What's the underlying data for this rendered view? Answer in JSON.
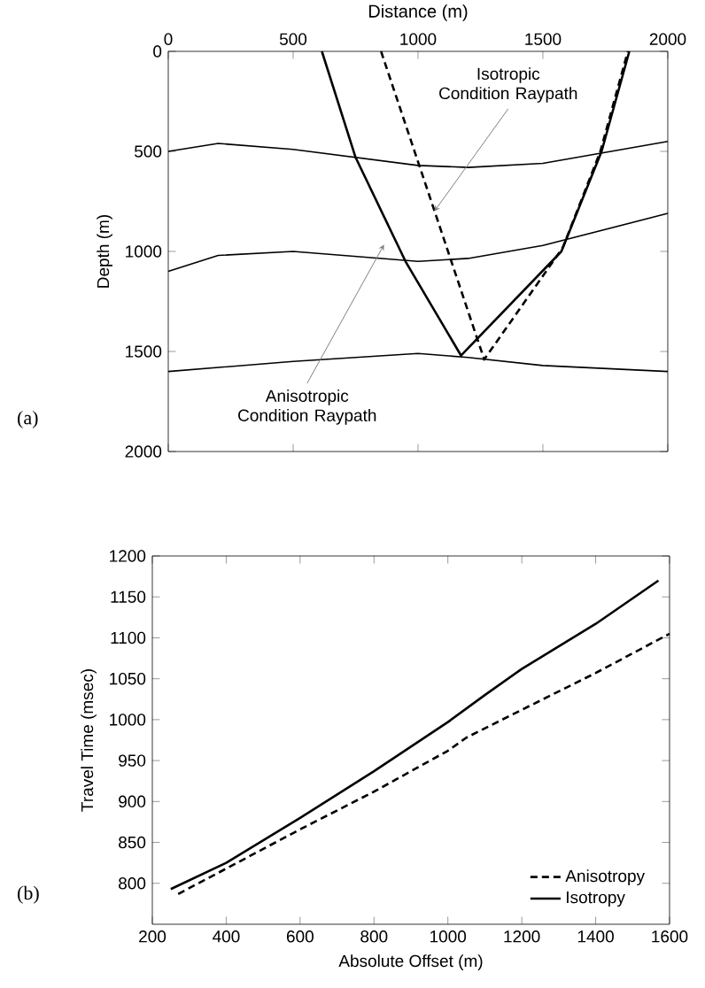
{
  "chart_data": [
    {
      "type": "line",
      "xlabel": "Distance (m)",
      "ylabel": "Depth (m)",
      "xlim": [
        0,
        2000
      ],
      "ylim": [
        2000,
        0
      ],
      "xticks": [
        0,
        500,
        1000,
        1500,
        2000
      ],
      "yticks": [
        0,
        500,
        1000,
        1500,
        2000
      ],
      "series": [
        {
          "color": "#000000",
          "line_style": "solid",
          "x": [
            0,
            200,
            500,
            1000,
            1200,
            1500,
            2000
          ],
          "values": [
            500,
            460,
            490,
            570,
            580,
            560,
            450
          ]
        },
        {
          "color": "#000000",
          "line_style": "solid",
          "x": [
            0,
            200,
            500,
            1000,
            1200,
            1500,
            2000
          ],
          "values": [
            1100,
            1020,
            1000,
            1050,
            1035,
            970,
            810
          ]
        },
        {
          "color": "#000000",
          "line_style": "solid",
          "x": [
            0,
            500,
            1000,
            1200,
            1500,
            2000
          ],
          "values": [
            1600,
            1550,
            1510,
            1530,
            1570,
            1600
          ]
        },
        {
          "color": "#000000",
          "line_style": "solid",
          "x": [
            615,
            750,
            950,
            1172,
            1574,
            1735,
            1846
          ],
          "values": [
            0,
            530,
            1050,
            1520,
            1000,
            500,
            0
          ]
        },
        {
          "color": "#000000",
          "line_style": "dashed",
          "x": [
            852,
            1265,
            1580,
            1730,
            1840
          ],
          "values": [
            0,
            1540,
            980,
            500,
            0
          ]
        }
      ],
      "annotations": [
        "(a)",
        {
          "text": "Isotropic Condition Raypath",
          "x": 1065,
          "y": 800
        },
        {
          "text": "Anisotropic Condition Raypath",
          "x": 864,
          "y": 966
        }
      ],
      "grid": false,
      "legend": false
    },
    {
      "type": "line",
      "xlabel": "Absolute Offset (m)",
      "ylabel": "Travel Time (msec)",
      "xlim": [
        200,
        1600
      ],
      "ylim": [
        750,
        1200
      ],
      "xticks": [
        200,
        400,
        600,
        800,
        1000,
        1200,
        1400,
        1600
      ],
      "yticks": [
        800,
        850,
        900,
        950,
        1000,
        1050,
        1100,
        1150,
        1200
      ],
      "series": [
        {
          "name": "Anisotropy",
          "color": "#000000",
          "line_style": "dashed",
          "x": [
            270,
            400,
            600,
            800,
            1000,
            1050,
            1200,
            1400,
            1600
          ],
          "values": [
            787,
            818,
            866,
            912,
            962,
            978,
            1012,
            1057,
            1105
          ]
        },
        {
          "name": "Isotropy",
          "color": "#000000",
          "line_style": "solid",
          "x": [
            250,
            400,
            600,
            800,
            1000,
            1100,
            1200,
            1400,
            1570
          ],
          "values": [
            793,
            825,
            880,
            937,
            997,
            1030,
            1062,
            1117,
            1170
          ]
        }
      ],
      "annotations": [
        "(b)"
      ],
      "grid": false,
      "legend": "bottom right"
    }
  ]
}
